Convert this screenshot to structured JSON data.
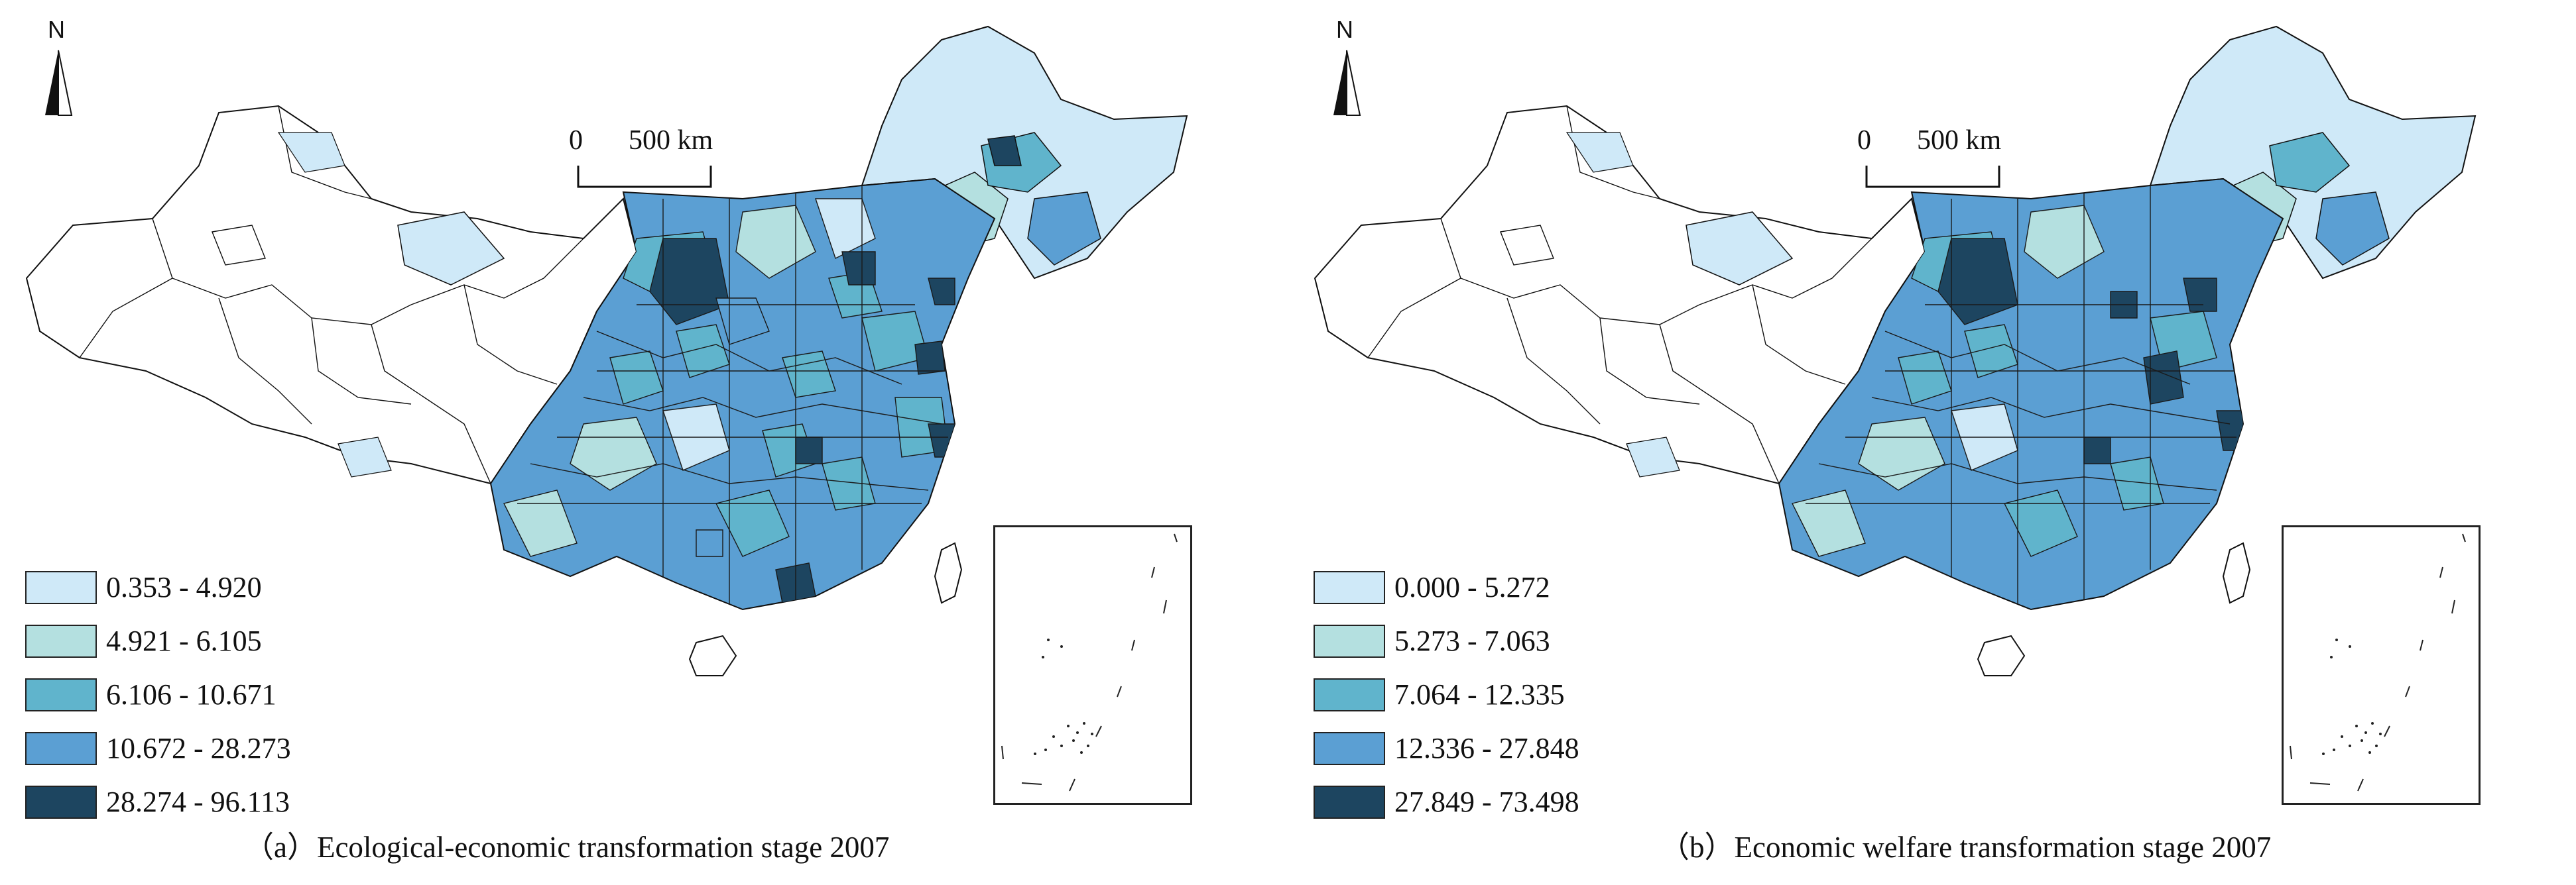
{
  "palette": [
    "#cfe9f8",
    "#b4e0e0",
    "#60b4cc",
    "#5b9fd3",
    "#1d4560"
  ],
  "panels": [
    {
      "north_label": "N",
      "scale": {
        "zero": "0",
        "distance": "500 km"
      },
      "legend": [
        {
          "label": "0.353 - 4.920",
          "color": "#cfe9f8"
        },
        {
          "label": "4.921 - 6.105",
          "color": "#b4e0e0"
        },
        {
          "label": "6.106 - 10.671",
          "color": "#60b4cc"
        },
        {
          "label": "10.672 - 28.273",
          "color": "#5b9fd3"
        },
        {
          "label": "28.274 - 96.113",
          "color": "#1d4560"
        }
      ],
      "caption": "（a）Ecological-economic transformation stage 2007"
    },
    {
      "north_label": "N",
      "scale": {
        "zero": "0",
        "distance": "500 km"
      },
      "legend": [
        {
          "label": "0.000 - 5.272",
          "color": "#cfe9f8"
        },
        {
          "label": "5.273 - 7.063",
          "color": "#b4e0e0"
        },
        {
          "label": "7.064 - 12.335",
          "color": "#60b4cc"
        },
        {
          "label": "12.336 - 27.848",
          "color": "#5b9fd3"
        },
        {
          "label": "27.849 - 73.498",
          "color": "#1d4560"
        }
      ],
      "caption": "（b）Economic welfare transformation stage 2007"
    }
  ]
}
